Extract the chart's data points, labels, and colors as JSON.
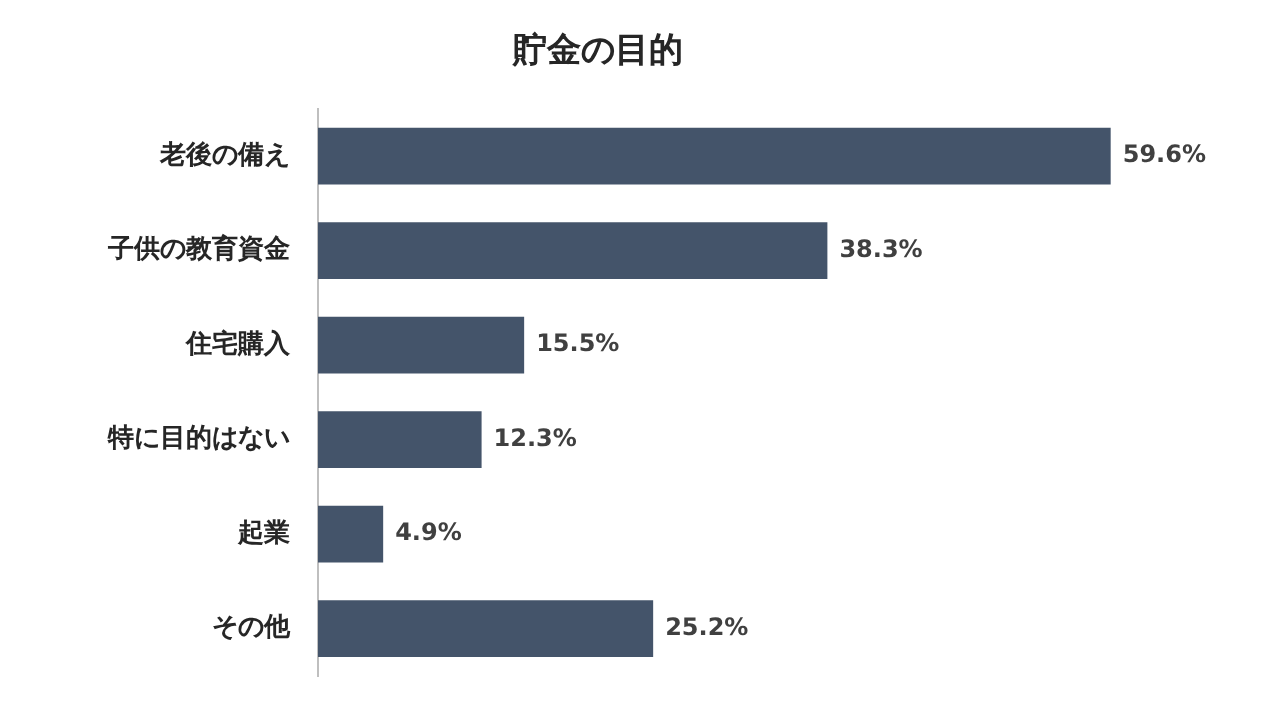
{
  "chart_data": {
    "type": "bar",
    "orientation": "horizontal",
    "title": "貯金の目的",
    "categories": [
      "老後の備え",
      "子供の教育資金",
      "住宅購入",
      "特に目的はない",
      "起業",
      "その他"
    ],
    "values": [
      59.6,
      38.3,
      15.5,
      12.3,
      4.9,
      25.2
    ],
    "value_labels": [
      "59.6%",
      "38.3%",
      "15.5%",
      "12.3%",
      "4.9%",
      "25.2%"
    ],
    "color": "#44546a",
    "legend": false
  }
}
